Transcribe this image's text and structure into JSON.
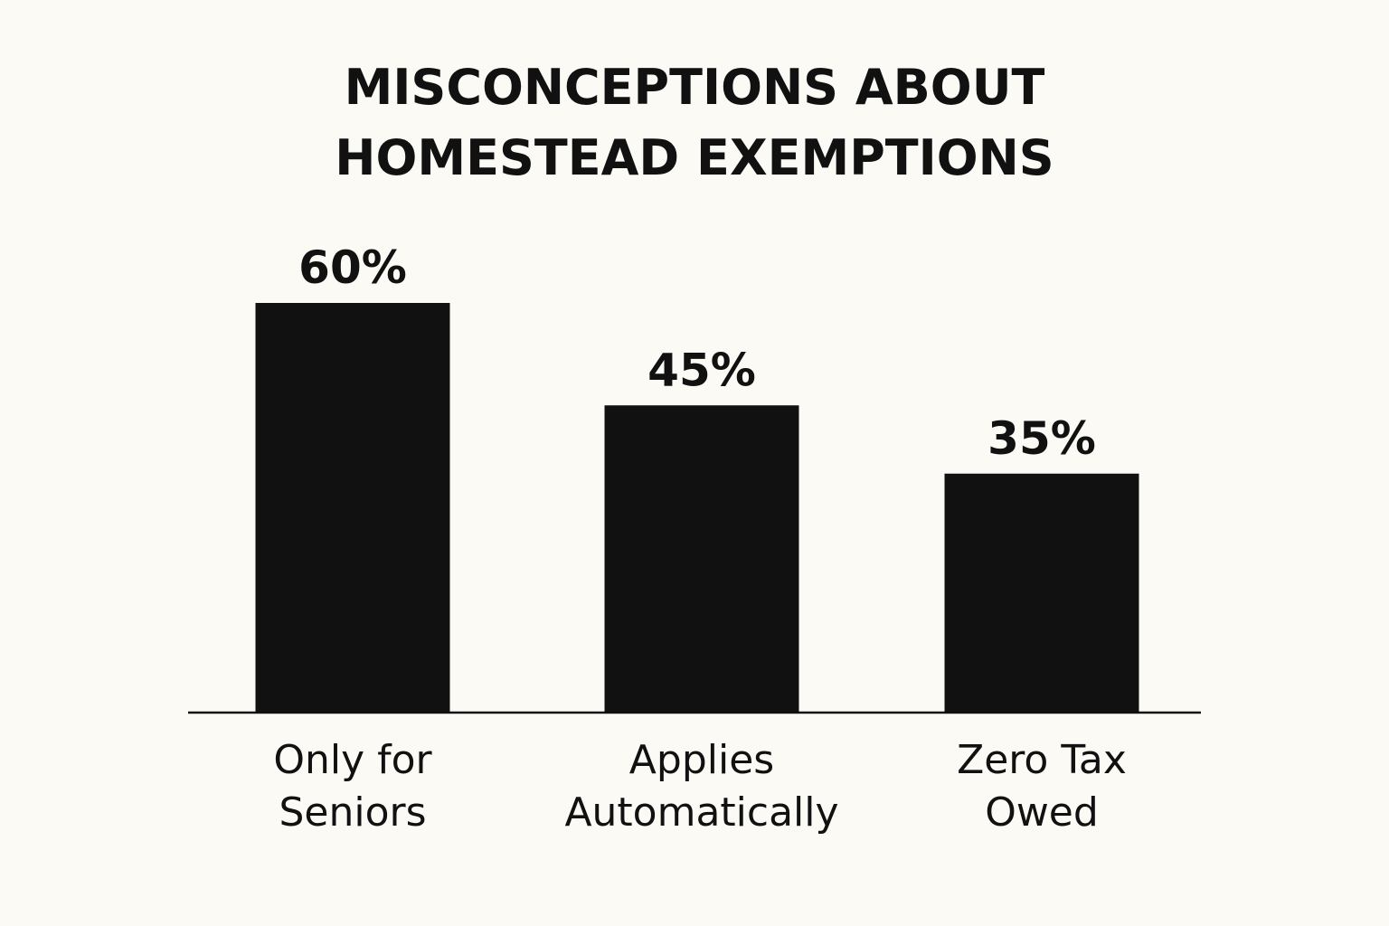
{
  "chart_data": {
    "type": "bar",
    "title": "MISCONCEPTIONS ABOUT HOMESTEAD EXEMPTIONS",
    "categories": [
      "Only for Seniors",
      "Applies Automatically",
      "Zero Tax Owed"
    ],
    "values": [
      60,
      45,
      35
    ],
    "value_labels": [
      "60%",
      "45%",
      "35%"
    ],
    "color": "#111111"
  }
}
